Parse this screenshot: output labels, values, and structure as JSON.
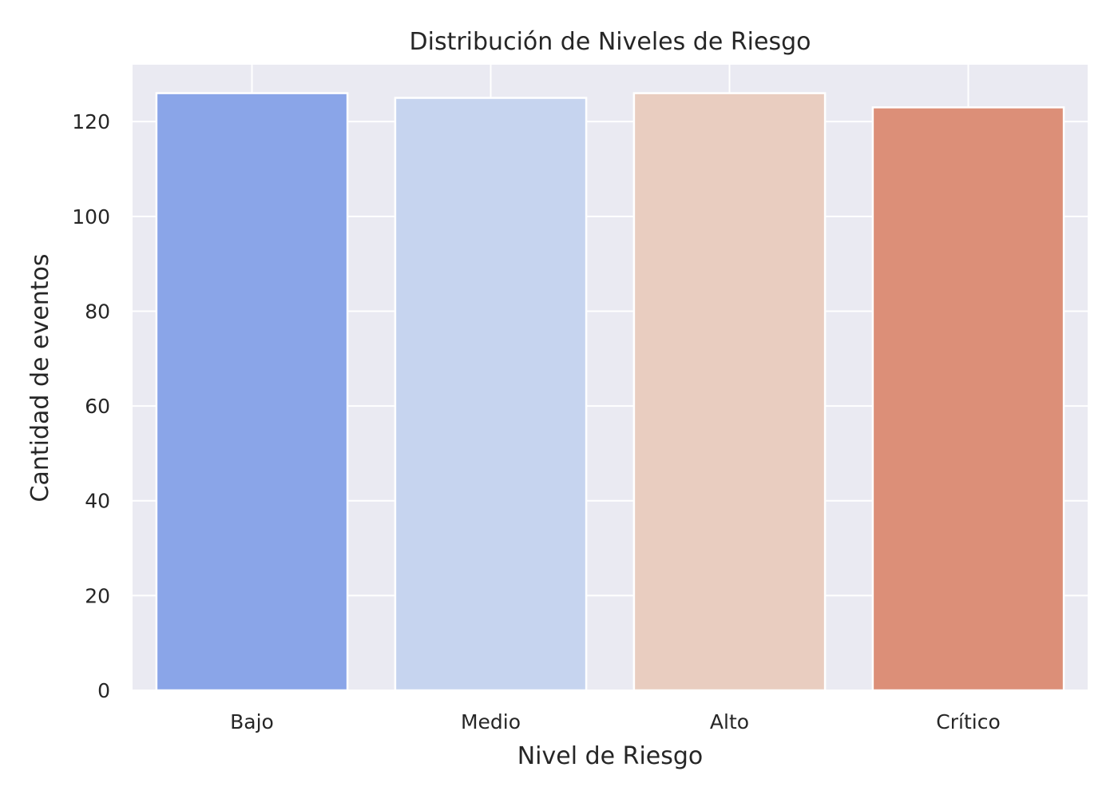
{
  "chart_data": {
    "type": "bar",
    "title": "Distribución de Niveles de Riesgo",
    "xlabel": "Nivel de Riesgo",
    "ylabel": "Cantidad de eventos",
    "categories": [
      "Bajo",
      "Medio",
      "Alto",
      "Crítico"
    ],
    "values": [
      126,
      125,
      126,
      123
    ],
    "ylim": [
      0,
      132
    ],
    "yticks": [
      0,
      20,
      40,
      60,
      80,
      100,
      120
    ],
    "grid": true,
    "colors": [
      "#8aa5e8",
      "#c6d4ef",
      "#e9cdc0",
      "#dc8f78"
    ],
    "background": "#eaeaf2"
  }
}
